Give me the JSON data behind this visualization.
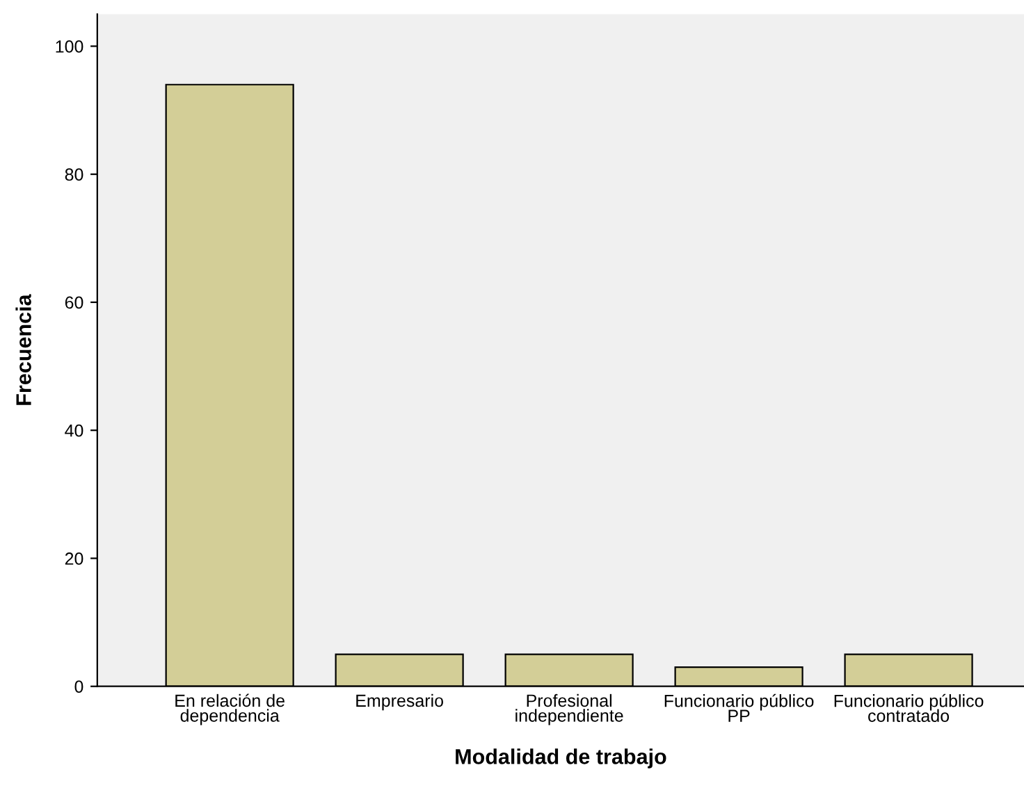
{
  "chart_data": {
    "type": "bar",
    "xlabel": "Modalidad de trabajo",
    "ylabel": "Frecuencia",
    "categories": [
      "En relación de\ndependencia",
      "Empresario",
      "Profesional\nindependiente",
      "Funcionario público\nPP",
      "Funcionario público\ncontratado"
    ],
    "values": [
      94,
      5,
      5,
      3,
      5
    ],
    "color": "#d3ce97",
    "ylim": [
      0,
      105
    ],
    "yticks": [
      0,
      20,
      40,
      60,
      80,
      100
    ],
    "grid": false,
    "legend": false
  }
}
